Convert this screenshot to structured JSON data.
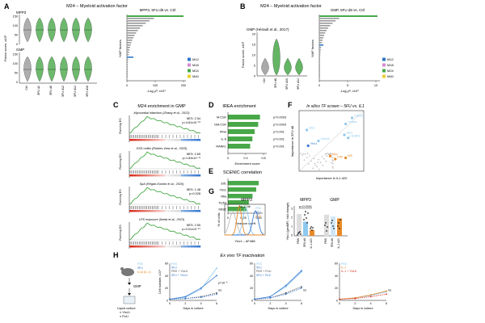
{
  "colors": {
    "m12": "#2f78c8",
    "m18": "#d68bd0",
    "m24": "#48a848",
    "m40": "#e8d030",
    "grey": "#9a9a9a",
    "orange": "#e88a28",
    "lightblue": "#8fc8ee",
    "blue": "#3a7ad0",
    "red": "#d83020",
    "darkred": "#a02010",
    "brown": "#b06828"
  },
  "panelA": {
    "letter": "A",
    "title": "M24 – Myeloid activation factor",
    "bar_title": "MPP3, 5FU d8 vs. Ctrl",
    "label_mpp3": "MPP3",
    "label_gmp": "GMP",
    "ylabel": "Factor score, x10³",
    "yticks_top": [
      "150",
      "100",
      "50",
      "0"
    ],
    "yticks_bot": [
      "150",
      "100",
      "50",
      "0"
    ],
    "xticks": [
      "Ctrl",
      "5FU d2",
      "5FU d8",
      "5FU d12",
      "5FU d14",
      "5FU d18"
    ],
    "bar_ylabel": "NMF factors",
    "bar_xlabel": "-Log₁₀P, x10³",
    "bar_xticks": [
      "0",
      "100",
      "200"
    ]
  },
  "panelB": {
    "letter": "B",
    "title": "M24 – Myeloid activation factor",
    "bar_title": "GMP, 5FU d8 vs. Ctrl",
    "label_gmp": "GMP (Hérault et al., 2017)",
    "ylabel": "Factor score, x10²",
    "yticks": [
      "20",
      "15",
      "10",
      "5",
      "0"
    ],
    "xticks": [
      "Ctrl",
      "5FU d8",
      "5FU d10",
      "5FU d14"
    ],
    "bar_ylabel": "NMF factors",
    "bar_xlabel": "-Log₁₀P, x10³",
    "bar_xticks": [
      "0",
      "5",
      "10"
    ]
  },
  "legend": [
    "M12",
    "M18",
    "M24",
    "M40"
  ],
  "panelC": {
    "letter": "C",
    "title": "M24 enrichment in GMP",
    "ylabel": "Running ES",
    "gsea": [
      {
        "name": "Myocardial infarction (Zhang et al., 2023)",
        "nes": "NES: 2.54",
        "p": "p=4.81x10⁻¹⁰"
      },
      {
        "name": "DSS colitis (Robles-Vera et al., 2025)",
        "nes": "NES: 2.65",
        "p": "p=1.83x10⁻¹¹"
      },
      {
        "name": "SpA (Regan-Komito et al., 2020)",
        "nes": "NES: 1.48",
        "p": "p=0.028"
      },
      {
        "name": "LPS exposure (Ikeda et al., 2023)",
        "nes": "NES: 2.65",
        "p": "p=3.01x10⁻¹⁹"
      }
    ]
  },
  "panelD": {
    "letter": "D",
    "title": "IREA enrichment",
    "xlabel": "Enrichment score",
    "xticks": [
      "0",
      "0.4",
      "0.8"
    ],
    "rows": [
      {
        "label": "M-CSF",
        "value": 0.72,
        "p": "p=0.0003"
      },
      {
        "label": "GM-CSF",
        "value": 0.68,
        "p": "p=0.0003"
      },
      {
        "label": "IFNα",
        "value": 0.6,
        "p": "p=0.001"
      },
      {
        "label": "IL-6",
        "value": 0.55,
        "p": "p=0.001"
      },
      {
        "label": "RANKL",
        "value": 0.5,
        "p": "p=0.001"
      }
    ]
  },
  "panelE": {
    "letter": "E",
    "title": "SCENIC correlation",
    "xlabel": "Pearson coeff.",
    "xticks": [
      "0",
      "0.25",
      "0.50"
    ],
    "rows": [
      {
        "label": "Elf1",
        "value": 0.5
      },
      {
        "label": "Ybx1",
        "value": 0.46
      },
      {
        "label": "Nfia",
        "value": 0.4
      },
      {
        "label": "Trp53",
        "value": 0.34
      },
      {
        "label": "Mbd2",
        "value": 0.3
      }
    ]
  },
  "panelF": {
    "letter": "F",
    "title": "In silico TF screen – 5FU vs. IL1",
    "xlabel": "Importance in IL1 d20",
    "ylabel": "Importance in 5FU d8",
    "points": [
      {
        "label": "CEBPb",
        "x": 0.82,
        "y": 0.88,
        "color": "lightblue"
      },
      {
        "label": "Cebpa",
        "x": 0.72,
        "y": 0.78,
        "color": "lightblue"
      },
      {
        "label": "Spi1",
        "x": 0.7,
        "y": 0.6,
        "color": "lightblue"
      },
      {
        "label": "CEBPe",
        "x": 0.76,
        "y": 0.55,
        "color": "lightblue"
      },
      {
        "label": "Ets1",
        "x": 0.12,
        "y": 0.68,
        "color": "lightblue"
      },
      {
        "label": "Cebpb",
        "x": 0.3,
        "y": 0.5,
        "color": "lightblue"
      },
      {
        "label": "Ybx1",
        "x": 0.14,
        "y": 0.42,
        "color": "blue"
      },
      {
        "label": "Irf8",
        "x": 0.72,
        "y": 0.22,
        "color": "orange"
      },
      {
        "label": "Myc",
        "x": 0.48,
        "y": 0.25,
        "color": "orange"
      },
      {
        "label": "Klf4",
        "x": 0.56,
        "y": 0.2,
        "color": "orange"
      }
    ]
  },
  "panelG": {
    "letter": "G",
    "flow_title": "MPP3",
    "flow_ylabel": "% of cells",
    "flow_xlabel": "Ybx1 – AF488",
    "flow_legend": [
      "PBS",
      "5FU",
      "IL1β"
    ],
    "no_ab": "No 1° Ab",
    "mpp3_title": "MPP3",
    "gmp_title": "GMP",
    "pval": "p<0.0001",
    "ylabel": "Ybx1 (geoMFI, fold change)",
    "yticks": [
      "3",
      "2",
      "1",
      "0"
    ],
    "xticks_mpp3": [
      "PBS",
      "5FU d8",
      "IL-1 d20"
    ],
    "xticks_gmp": [
      "PBS",
      "5FU d8",
      "IL-1 d20"
    ]
  },
  "panelH": {
    "letter": "H",
    "title": "Ex vivo TF inactivation",
    "schematic": {
      "legend": [
        "PBS",
        "5FU",
        "IL1β (IL-1)"
      ],
      "step1": "GMP",
      "step2": "Liquid culture",
      "step3": "± Ybx1i",
      "step4": "± Pu1i"
    },
    "ylabel": "Cell number, x10⁴",
    "xlabel": "Days in culture",
    "charts": [
      {
        "legend": [
          "PBS",
          "5FU",
          "PBS + Ybx1i",
          "5FU + Ybx1i"
        ],
        "pnote": "p=10⁻⁶",
        "ns": "ns",
        "yticks": [
          "60",
          "40",
          "20",
          "0"
        ],
        "xticks": [
          "0",
          "2",
          "4",
          "6"
        ]
      },
      {
        "legend": [
          "PBS",
          "5FU",
          "PBS + Pu1i",
          "5FU + Pu1i"
        ],
        "ns": "ns",
        "yticks": [
          "60",
          "40",
          "20",
          "0"
        ],
        "xticks": [
          "0",
          "2",
          "4",
          "6"
        ]
      },
      {
        "legend": [
          "PBS",
          "IL-1",
          "IL-1 + Ybx1i"
        ],
        "ns": "ns",
        "yticks": [
          "60",
          "40",
          "20",
          "0"
        ],
        "xticks": [
          "0",
          "2",
          "4",
          "6"
        ]
      }
    ]
  }
}
